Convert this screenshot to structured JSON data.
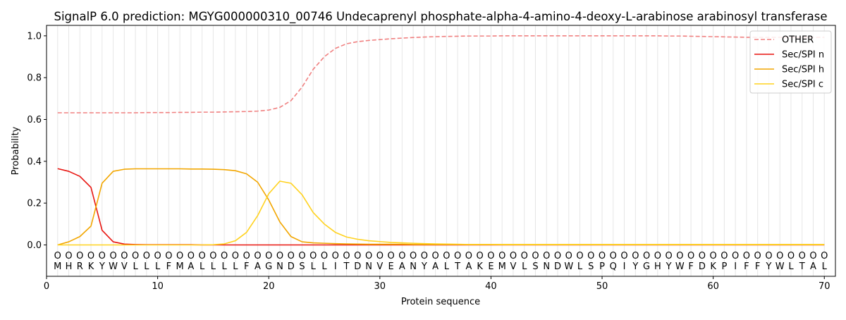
{
  "chart_data": {
    "type": "line",
    "title": "SignalP 6.0 prediction: MGYG000000310_00746 Undecaprenyl phosphate-alpha-4-amino-4-deoxy-L-arabinose arabinosyl transferase",
    "xlabel": "Protein sequence",
    "ylabel": "Probability",
    "xlim": [
      0,
      71
    ],
    "ylim": [
      -0.15,
      1.05
    ],
    "xticks": [
      0,
      10,
      20,
      30,
      40,
      50,
      60,
      70
    ],
    "yticks": [
      0.0,
      0.2,
      0.4,
      0.6,
      0.8,
      1.0
    ],
    "grid": "vertical lines at each residue position",
    "legend_position": "top-right",
    "sequence": [
      "M",
      "H",
      "R",
      "K",
      "Y",
      "W",
      "V",
      "L",
      "L",
      "L",
      "F",
      "M",
      "A",
      "L",
      "L",
      "L",
      "L",
      "F",
      "A",
      "G",
      "N",
      "D",
      "S",
      "L",
      "L",
      "I",
      "T",
      "D",
      "N",
      "V",
      "E",
      "A",
      "N",
      "Y",
      "A",
      "L",
      "T",
      "A",
      "K",
      "E",
      "M",
      "V",
      "L",
      "S",
      "N",
      "D",
      "W",
      "L",
      "S",
      "P",
      "Q",
      "I",
      "Y",
      "G",
      "H",
      "Y",
      "W",
      "F",
      "D",
      "K",
      "P",
      "I",
      "F",
      "F",
      "Y",
      "W",
      "L",
      "T",
      "A",
      "L"
    ],
    "region_marker": "O",
    "series": [
      {
        "name": "OTHER",
        "color": "#f08080",
        "dash": "dashed",
        "values": [
          0.632,
          0.632,
          0.632,
          0.632,
          0.632,
          0.632,
          0.632,
          0.632,
          0.633,
          0.633,
          0.633,
          0.634,
          0.634,
          0.635,
          0.635,
          0.636,
          0.637,
          0.638,
          0.64,
          0.645,
          0.658,
          0.69,
          0.755,
          0.84,
          0.9,
          0.94,
          0.962,
          0.972,
          0.978,
          0.982,
          0.986,
          0.989,
          0.992,
          0.994,
          0.996,
          0.997,
          0.998,
          0.999,
          0.999,
          0.999,
          1.0,
          1.0,
          1.0,
          1.0,
          1.0,
          1.0,
          1.0,
          1.0,
          1.0,
          1.0,
          1.0,
          1.0,
          1.0,
          1.0,
          1.0,
          0.999,
          0.999,
          0.998,
          0.997,
          0.996,
          0.995,
          0.994,
          0.993,
          0.993,
          0.993,
          0.993,
          0.993,
          0.993,
          0.993,
          0.993
        ]
      },
      {
        "name": "Sec/SPI n",
        "color": "#e8140f",
        "dash": "solid",
        "values": [
          0.365,
          0.352,
          0.328,
          0.275,
          0.07,
          0.015,
          0.004,
          0.002,
          0.001,
          0.001,
          0.001,
          0.001,
          0.001,
          0.0,
          0.0,
          0.0,
          0.0,
          0.0,
          0.0,
          0.0,
          0.0,
          0.0,
          0.0,
          0.0,
          0.0,
          0.0,
          0.0,
          0.0,
          0.0,
          0.0,
          0.0,
          0.0,
          0.0,
          0.0,
          0.0,
          0.0,
          0.0,
          0.0,
          0.0,
          0.0,
          0.0,
          0.0,
          0.0,
          0.0,
          0.0,
          0.0,
          0.0,
          0.0,
          0.0,
          0.0,
          0.0,
          0.0,
          0.0,
          0.0,
          0.0,
          0.0,
          0.0,
          0.0,
          0.0,
          0.0,
          0.0,
          0.0,
          0.0,
          0.0,
          0.0,
          0.0,
          0.0,
          0.0,
          0.0,
          0.0
        ]
      },
      {
        "name": "Sec/SPI h",
        "color": "#f2a600",
        "dash": "solid",
        "values": [
          0.0,
          0.015,
          0.04,
          0.09,
          0.295,
          0.352,
          0.362,
          0.364,
          0.364,
          0.364,
          0.364,
          0.364,
          0.363,
          0.363,
          0.362,
          0.36,
          0.355,
          0.34,
          0.3,
          0.215,
          0.11,
          0.04,
          0.015,
          0.01,
          0.008,
          0.006,
          0.005,
          0.004,
          0.003,
          0.003,
          0.003,
          0.003,
          0.002,
          0.002,
          0.002,
          0.002,
          0.002,
          0.002,
          0.002,
          0.002,
          0.002,
          0.002,
          0.002,
          0.002,
          0.002,
          0.002,
          0.002,
          0.002,
          0.002,
          0.002,
          0.002,
          0.002,
          0.002,
          0.002,
          0.002,
          0.002,
          0.002,
          0.002,
          0.002,
          0.002,
          0.002,
          0.002,
          0.002,
          0.002,
          0.002,
          0.002,
          0.002,
          0.002,
          0.002,
          0.002
        ]
      },
      {
        "name": "Sec/SPI c",
        "color": "#ffd21f",
        "dash": "solid",
        "values": [
          0.0,
          0.0,
          0.0,
          0.0,
          0.0,
          0.0,
          0.0,
          0.0,
          0.0,
          0.0,
          0.0,
          0.0,
          0.0,
          0.0,
          0.001,
          0.005,
          0.02,
          0.06,
          0.14,
          0.245,
          0.305,
          0.295,
          0.24,
          0.155,
          0.1,
          0.06,
          0.038,
          0.027,
          0.02,
          0.016,
          0.012,
          0.01,
          0.008,
          0.006,
          0.005,
          0.004,
          0.003,
          0.002,
          0.002,
          0.002,
          0.001,
          0.001,
          0.001,
          0.001,
          0.001,
          0.001,
          0.001,
          0.001,
          0.001,
          0.001,
          0.001,
          0.001,
          0.001,
          0.001,
          0.001,
          0.001,
          0.001,
          0.001,
          0.001,
          0.001,
          0.001,
          0.001,
          0.001,
          0.001,
          0.001,
          0.001,
          0.001,
          0.001,
          0.001,
          0.001
        ]
      }
    ]
  }
}
